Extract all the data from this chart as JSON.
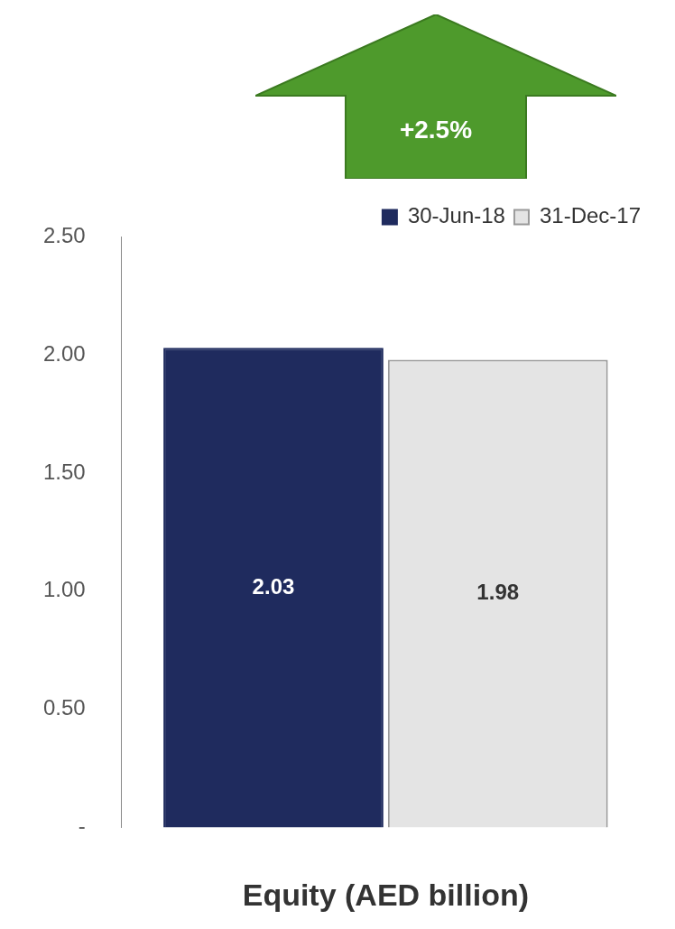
{
  "chart_data": {
    "type": "bar",
    "categories": [
      null
    ],
    "xlabel": "Equity (AED billion)",
    "series": [
      {
        "name": "30-Jun-18",
        "color": "#1f2b5e",
        "values": [
          2.03
        ]
      },
      {
        "name": "31-Dec-17",
        "color": "#e4e4e4",
        "values": [
          1.98
        ]
      }
    ],
    "ylim": [
      0,
      2.5
    ],
    "yticks": [
      {
        "value": 0,
        "label": "-"
      },
      {
        "value": 0.5,
        "label": "0.50"
      },
      {
        "value": 1,
        "label": "1.00"
      },
      {
        "value": 1.5,
        "label": "1.50"
      },
      {
        "value": 2,
        "label": "2.00"
      },
      {
        "value": 2.5,
        "label": "2.50"
      }
    ],
    "data_labels": true,
    "legend": "top",
    "grid": false,
    "annotations": [
      "+2.5%"
    ]
  }
}
